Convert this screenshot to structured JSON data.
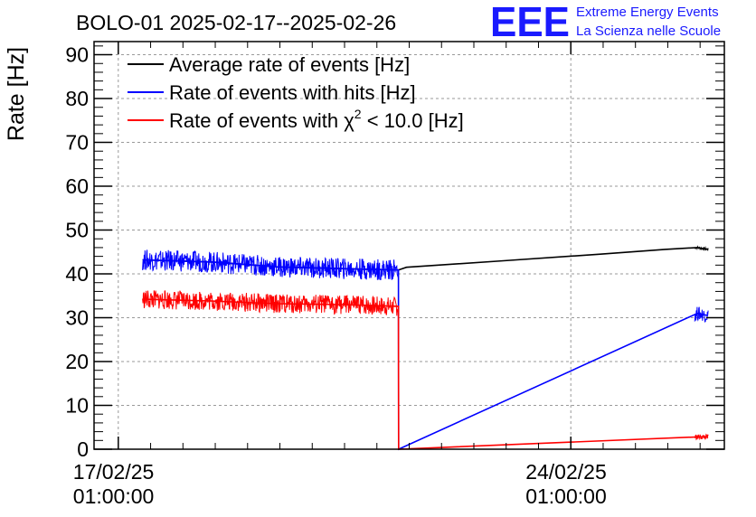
{
  "chart_data": {
    "type": "line",
    "title": "BOLO-01 2025-02-17--2025-02-26",
    "ylabel": "Rate [Hz]",
    "xlabel": "",
    "ylim": [
      0,
      93
    ],
    "yticks": [
      0,
      10,
      20,
      30,
      40,
      50,
      60,
      70,
      80,
      90
    ],
    "xrange": [
      "2025-02-16 16:00",
      "2025-02-26 10:00"
    ],
    "xticks": [
      {
        "x": "2025-02-17 01:00",
        "line1": "17/02/25",
        "line2": "01:00:00"
      },
      {
        "x": "2025-02-24 01:00",
        "line1": "24/02/25",
        "line2": "01:00:00"
      }
    ],
    "grid": true,
    "legend_position": "top-left",
    "series": [
      {
        "name": "Average rate of events [Hz]",
        "color": "#000000",
        "points": [
          [
            "2025-02-17 10:00",
            43.2
          ],
          [
            "2025-02-18 12:00",
            42.7
          ],
          [
            "2025-02-19 12:00",
            41.6
          ],
          [
            "2025-02-20 12:00",
            41.2
          ],
          [
            "2025-02-21 09:00",
            40.9
          ],
          [
            "2025-02-21 12:00",
            41.5
          ],
          [
            "2025-02-23 00:00",
            43.0
          ],
          [
            "2025-02-24 12:00",
            44.5
          ],
          [
            "2025-02-25 12:00",
            45.6
          ],
          [
            "2025-02-26 00:00",
            46.0
          ],
          [
            "2025-02-26 04:00",
            45.6
          ]
        ]
      },
      {
        "name": "Rate of events with hits [Hz]",
        "color": "#0000ff",
        "points": [
          [
            "2025-02-17 10:00",
            43.2
          ],
          [
            "2025-02-18 12:00",
            42.7
          ],
          [
            "2025-02-19 12:00",
            41.6
          ],
          [
            "2025-02-20 12:00",
            41.2
          ],
          [
            "2025-02-21 09:00",
            40.9
          ],
          [
            "2025-02-21 09:05",
            0.0
          ],
          [
            "2025-02-26 00:00",
            31.0
          ],
          [
            "2025-02-26 04:00",
            30.5
          ]
        ]
      },
      {
        "name": "Rate of events with χ² < 10.0 [Hz]",
        "color": "#ff0000",
        "points": [
          [
            "2025-02-17 10:00",
            34.2
          ],
          [
            "2025-02-18 12:00",
            33.8
          ],
          [
            "2025-02-19 12:00",
            33.2
          ],
          [
            "2025-02-20 12:00",
            33.0
          ],
          [
            "2025-02-21 09:00",
            32.6
          ],
          [
            "2025-02-21 09:05",
            0.0
          ],
          [
            "2025-02-26 00:00",
            2.8
          ],
          [
            "2025-02-26 04:00",
            2.8
          ]
        ]
      }
    ]
  },
  "legend": {
    "avg_label": "Average rate of events [Hz]",
    "hits_label": "Rate of events with hits [Hz]",
    "chi_prefix": "Rate of events with ",
    "chi_symbol": "χ",
    "chi_exp": "2",
    "chi_suffix": " < 10.0 [Hz]"
  },
  "logo": {
    "mark": "EEE",
    "line1": "Extreme Energy Events",
    "line2": "La Scienza nelle Scuole"
  }
}
